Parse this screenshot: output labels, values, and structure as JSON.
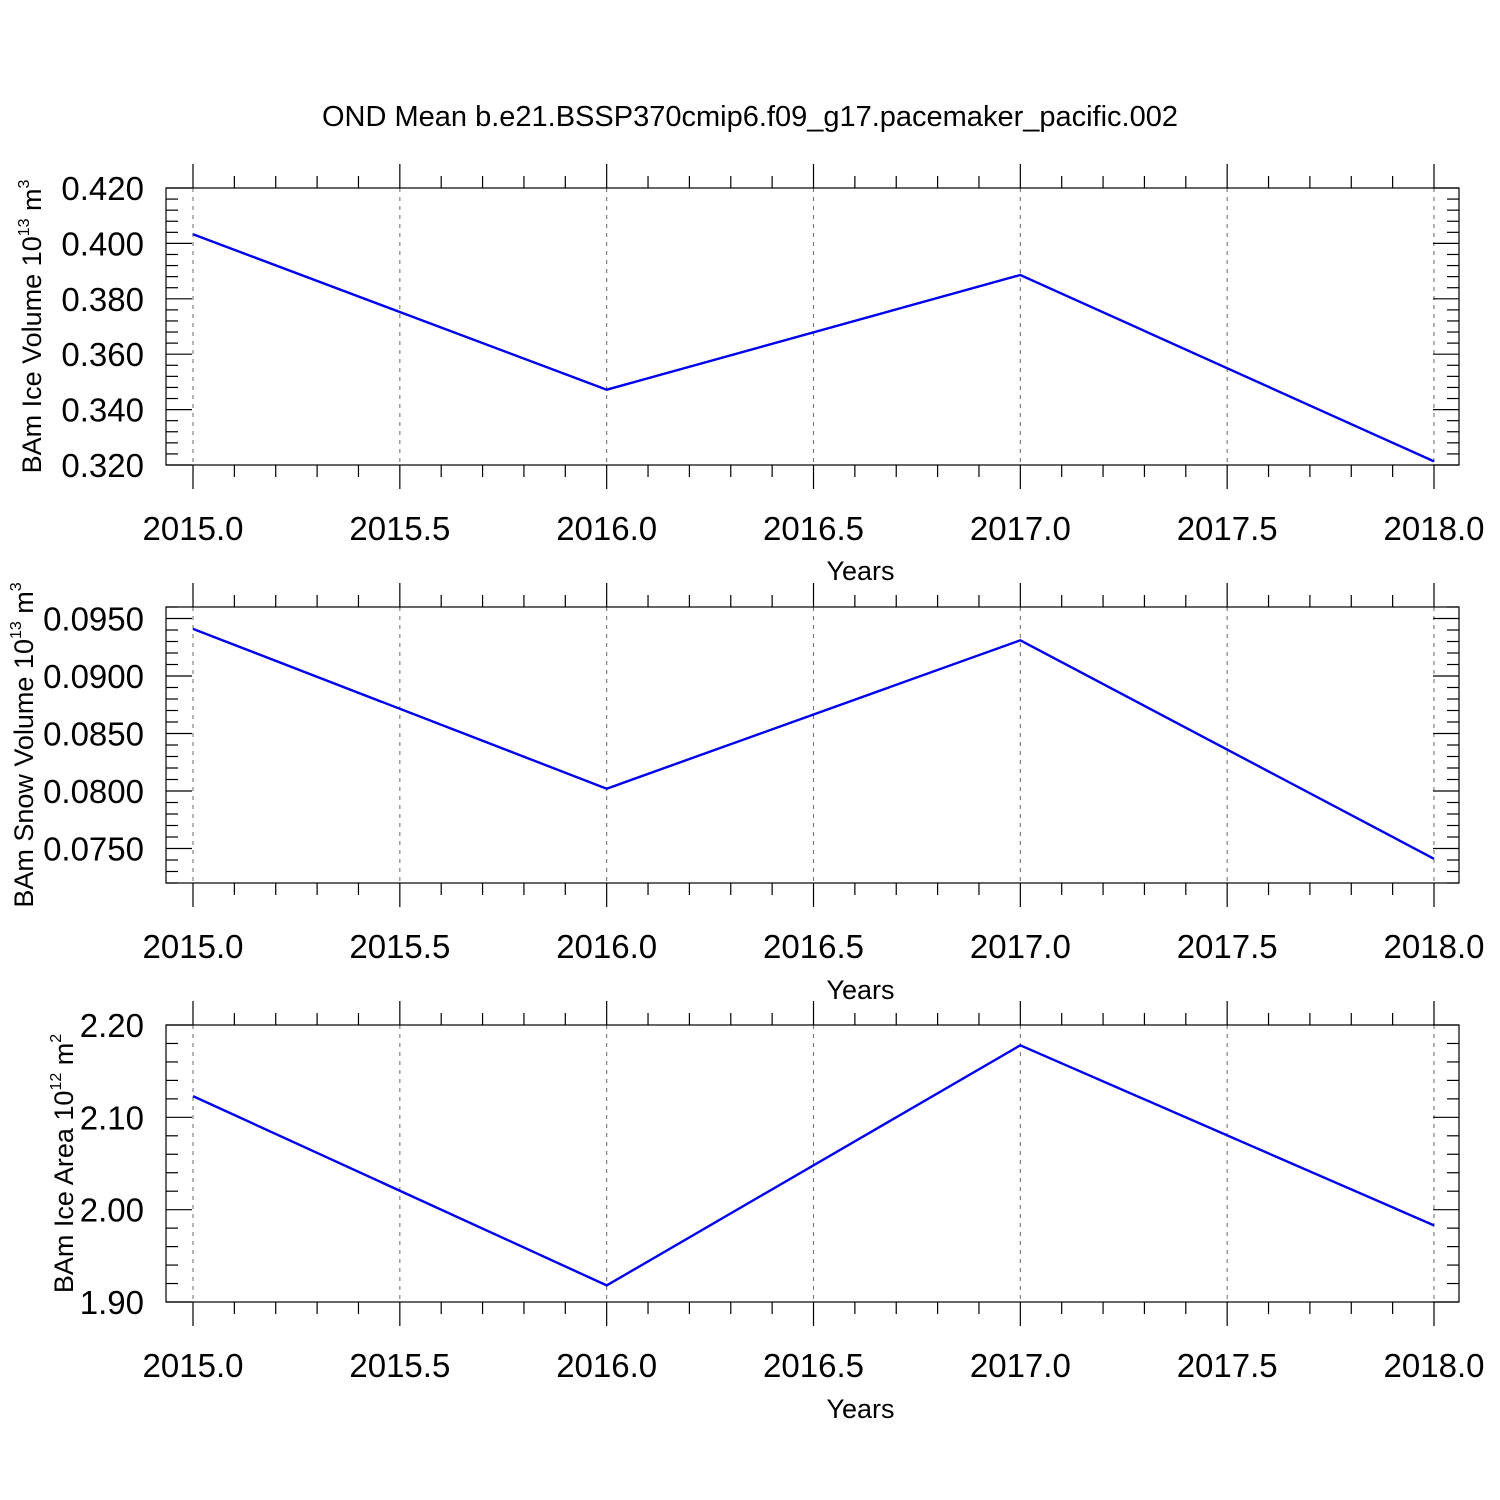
{
  "title": "OND Mean b.e21.BSSP370cmip6.f09_g17.pacemaker_pacific.002",
  "colors": {
    "series": "#0000ee",
    "axes": "#000000",
    "grid": "#777777"
  },
  "chart_data": [
    {
      "type": "line",
      "xlabel": "Years",
      "ylabel": {
        "text": "BAm Ice Volume 10",
        "exp": "13",
        "unit": " m",
        "unit_exp": "3"
      },
      "xlim": [
        2015.0,
        2018.0
      ],
      "ylim": [
        0.32,
        0.42
      ],
      "xticks": [
        "2015.0",
        "2015.5",
        "2016.0",
        "2016.5",
        "2017.0",
        "2017.5",
        "2018.0"
      ],
      "yticks": [
        "0.320",
        "0.340",
        "0.360",
        "0.380",
        "0.400",
        "0.420"
      ],
      "grid": "vertical dashed",
      "x": [
        2015,
        2016,
        2017,
        2018
      ],
      "values": [
        0.4033,
        0.3472,
        0.3886,
        0.3213
      ]
    },
    {
      "type": "line",
      "xlabel": "Years",
      "ylabel": {
        "text": "BAm Snow Volume 10",
        "exp": "13",
        "unit": " m",
        "unit_exp": "3"
      },
      "xlim": [
        2015.0,
        2018.0
      ],
      "ylim": [
        0.072,
        0.096
      ],
      "xticks": [
        "2015.0",
        "2015.5",
        "2016.0",
        "2016.5",
        "2017.0",
        "2017.5",
        "2018.0"
      ],
      "yticks": [
        "0.0750",
        "0.0800",
        "0.0850",
        "0.0900",
        "0.0950"
      ],
      "grid": "vertical dashed",
      "x": [
        2015,
        2016,
        2017,
        2018
      ],
      "values": [
        0.0941,
        0.0802,
        0.0931,
        0.0741
      ]
    },
    {
      "type": "line",
      "xlabel": "Years",
      "ylabel": {
        "text": "BAm Ice Area 10",
        "exp": "12",
        "unit": " m",
        "unit_exp": "2"
      },
      "xlim": [
        2015.0,
        2018.0
      ],
      "ylim": [
        1.9,
        2.2
      ],
      "xticks": [
        "2015.0",
        "2015.5",
        "2016.0",
        "2016.5",
        "2017.0",
        "2017.5",
        "2018.0"
      ],
      "yticks": [
        "1.90",
        "2.00",
        "2.10",
        "2.20"
      ],
      "grid": "vertical dashed",
      "x": [
        2015,
        2016,
        2017,
        2018
      ],
      "values": [
        2.123,
        1.918,
        2.178,
        1.983
      ]
    }
  ]
}
